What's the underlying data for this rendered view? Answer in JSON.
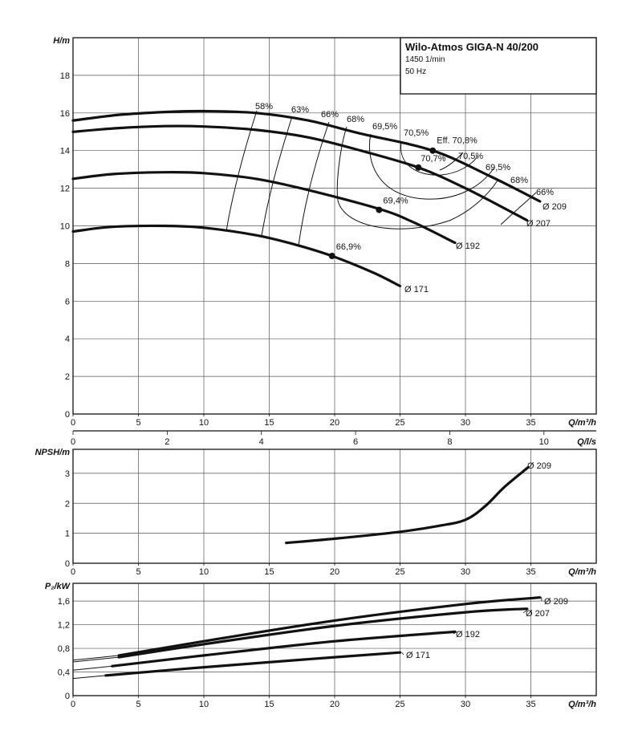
{
  "chart_data": [
    {
      "type": "line",
      "title": "Wilo-Atmos GIGA-N 40/200",
      "subtitle": [
        "1450 1/min",
        "50 Hz"
      ],
      "ylabel": "H/m",
      "xlabel": "Q/m³/h",
      "xlim": [
        0,
        40
      ],
      "ylim": [
        0,
        20
      ],
      "x_ticks": [
        "0",
        "5",
        "10",
        "15",
        "20",
        "25",
        "30",
        "35"
      ],
      "y_ticks": [
        "0",
        "2",
        "4",
        "6",
        "8",
        "10",
        "12",
        "14",
        "16",
        "18"
      ],
      "secondary_x": {
        "label": "Q/l/s",
        "ticks": [
          "0",
          "2",
          "4",
          "6",
          "8",
          "10"
        ],
        "ticks_m3h": [
          0,
          7.2,
          14.4,
          21.6,
          28.8,
          36
        ]
      },
      "grid": true,
      "series": [
        {
          "name": "Ø 209",
          "x": [
            0,
            3.5,
            7,
            10,
            14,
            18,
            22,
            27.5,
            32,
            35.7
          ],
          "y": [
            15.6,
            15.9,
            16.05,
            16.1,
            16.0,
            15.6,
            14.9,
            14.0,
            12.6,
            11.3
          ]
        },
        {
          "name": "Ø 207",
          "x": [
            0,
            3.5,
            7,
            10,
            14,
            18,
            22,
            26.4,
            30,
            34.7
          ],
          "y": [
            15.0,
            15.2,
            15.3,
            15.28,
            15.1,
            14.7,
            14.0,
            13.1,
            12.0,
            10.3
          ]
        },
        {
          "name": "Ø 192",
          "x": [
            0,
            3,
            7,
            10,
            14,
            18,
            23.4,
            26,
            29.2
          ],
          "y": [
            12.5,
            12.75,
            12.85,
            12.8,
            12.5,
            11.9,
            10.9,
            10.2,
            9.1
          ]
        },
        {
          "name": "Ø 171",
          "x": [
            0,
            3,
            7,
            10,
            14,
            17,
            19.8,
            23,
            25
          ],
          "y": [
            9.7,
            9.95,
            10.0,
            9.9,
            9.5,
            9.0,
            8.4,
            7.5,
            6.8
          ]
        }
      ],
      "efficiency_points": [
        {
          "label": "Eff. 70,8%",
          "x": 27.5,
          "y": 14.0
        },
        {
          "label": "70,7%",
          "x": 26.4,
          "y": 13.1
        },
        {
          "label": "69,4%",
          "x": 23.4,
          "y": 10.85
        },
        {
          "label": "66,9%",
          "x": 19.8,
          "y": 8.4
        }
      ],
      "efficiency_labels": [
        "58%",
        "63%",
        "66%",
        "68%",
        "69,5%",
        "70,5%",
        "70,5%",
        "69,5%",
        "68%",
        "66%"
      ]
    },
    {
      "type": "line",
      "ylabel": "NPSH/m",
      "xlabel": "Q/m³/h",
      "xlim": [
        0,
        40
      ],
      "ylim": [
        0,
        3.8
      ],
      "x_ticks": [
        "0",
        "5",
        "10",
        "15",
        "20",
        "25",
        "30",
        "35"
      ],
      "y_ticks": [
        "0",
        "1",
        "2",
        "3"
      ],
      "grid": true,
      "series": [
        {
          "name": "Ø 209",
          "x": [
            16.3,
            20,
            25,
            28,
            30,
            31.5,
            33,
            34.8
          ],
          "y": [
            0.68,
            0.82,
            1.05,
            1.25,
            1.45,
            1.9,
            2.55,
            3.2
          ]
        }
      ]
    },
    {
      "type": "line",
      "ylabel": "P₂/kW",
      "xlabel": "Q/m³/h",
      "xlim": [
        0,
        40
      ],
      "ylim": [
        0,
        1.9
      ],
      "x_ticks": [
        "0",
        "5",
        "10",
        "15",
        "20",
        "25",
        "30",
        "35"
      ],
      "y_ticks": [
        "0",
        "0,4",
        "0,8",
        "1,2",
        "1,6"
      ],
      "grid": true,
      "series": [
        {
          "name": "Ø 209",
          "x": [
            3.5,
            10,
            20,
            30,
            35.7
          ],
          "y": [
            0.68,
            0.92,
            1.27,
            1.55,
            1.66
          ]
        },
        {
          "name": "Ø 207",
          "x": [
            3.5,
            10,
            20,
            30,
            34.7
          ],
          "y": [
            0.65,
            0.87,
            1.18,
            1.41,
            1.47
          ]
        },
        {
          "name": "Ø 192",
          "x": [
            3,
            10,
            20,
            29.2
          ],
          "y": [
            0.5,
            0.68,
            0.92,
            1.08
          ]
        },
        {
          "name": "Ø 171",
          "x": [
            2.5,
            10,
            20,
            25
          ],
          "y": [
            0.34,
            0.48,
            0.65,
            0.73
          ]
        }
      ],
      "extensions": [
        {
          "x": [
            0,
            3.5
          ],
          "y": [
            0.6,
            0.68
          ]
        },
        {
          "x": [
            0,
            3.5
          ],
          "y": [
            0.57,
            0.65
          ]
        },
        {
          "x": [
            0,
            3
          ],
          "y": [
            0.43,
            0.5
          ]
        },
        {
          "x": [
            0,
            2.5
          ],
          "y": [
            0.29,
            0.34
          ]
        }
      ]
    }
  ]
}
